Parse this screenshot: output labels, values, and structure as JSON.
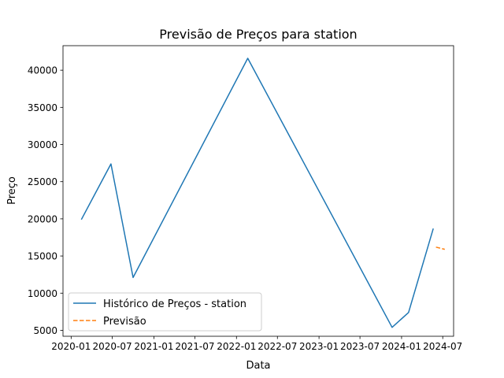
{
  "chart_data": {
    "type": "line",
    "title": "Previsão de Preços para station",
    "xlabel": "Data",
    "ylabel": "Preço",
    "xlim": [
      "2019-11-26",
      "2024-08-18"
    ],
    "ylim": [
      4200,
      43300
    ],
    "x_ticks": [
      "2020-01-01",
      "2020-07-01",
      "2021-01-01",
      "2021-07-01",
      "2022-01-01",
      "2022-07-01",
      "2023-01-01",
      "2023-07-01",
      "2024-01-01",
      "2024-07-01"
    ],
    "x_tick_labels": [
      "2020-01",
      "2020-07",
      "2021-01",
      "2021-07",
      "2022-01",
      "2022-07",
      "2023-01",
      "2023-07",
      "2024-01",
      "2024-07"
    ],
    "y_ticks": [
      5000,
      10000,
      15000,
      20000,
      25000,
      30000,
      35000,
      40000
    ],
    "y_tick_labels": [
      "5000",
      "10000",
      "15000",
      "20000",
      "25000",
      "30000",
      "35000",
      "40000"
    ],
    "grid": false,
    "legend_position": "lower-left",
    "series": [
      {
        "name": "Histórico de Preços - station",
        "color": "#1f77b4",
        "style": "solid",
        "x": [
          "2020-02-15",
          "2020-06-25",
          "2020-10-01",
          "2022-02-20",
          "2023-11-20",
          "2024-02-01",
          "2024-05-20"
        ],
        "y": [
          19900,
          27400,
          12100,
          41600,
          5400,
          7400,
          18700
        ]
      },
      {
        "name": "Previsão",
        "color": "#ff7f0e",
        "style": "dashed",
        "x": [
          "2024-06-01",
          "2024-07-10"
        ],
        "y": [
          16200,
          15900
        ]
      }
    ]
  }
}
